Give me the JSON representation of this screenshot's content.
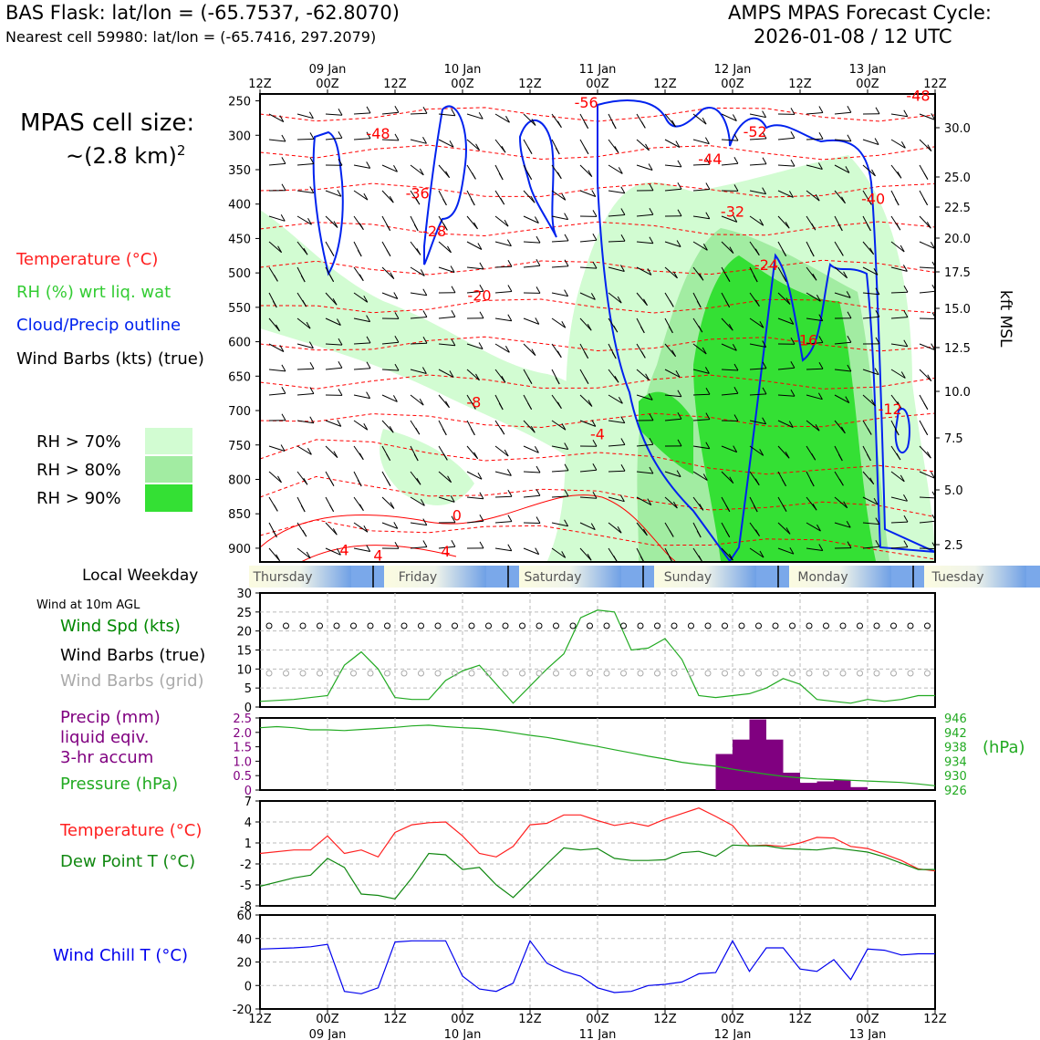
{
  "header": {
    "title": "BAS Flask: lat/lon = (-65.7537, -62.8070)",
    "subtitle": "Nearest cell 59980: lat/lon = (-65.7416, 297.2079)",
    "forecast_label": "AMPS MPAS Forecast Cycle:",
    "forecast_cycle": "2026-01-08 / 12 UTC",
    "cell_size_label": "MPAS cell size:",
    "cell_size_value": "~(2.8 km)",
    "cell_size_exp": "2"
  },
  "legend": {
    "temperature": "Temperature (°C)",
    "rh": "RH (%) wrt liq. wat",
    "cloud": "Cloud/Precip outline",
    "wind": "Wind Barbs (kts) (true)",
    "rh70": "RH > 70%",
    "rh80": "RH > 80%",
    "rh90": "RH > 90%"
  },
  "colors": {
    "rh70": "#d2fcd2",
    "rh80": "#a2eca2",
    "rh90": "#34e034",
    "temp": "#ff0000",
    "cloud": "#0022ee",
    "precip": "#800080",
    "pressure": "#22aa22",
    "dew": "#118811",
    "windchill": "#0000ee"
  },
  "weekday": {
    "label": "Local Weekday",
    "days": [
      "Thursday",
      "Friday",
      "Saturday",
      "Sunday",
      "Monday",
      "Tuesday"
    ]
  },
  "time_axis": {
    "hour_labels": [
      "12Z",
      "00Z",
      "12Z",
      "00Z",
      "12Z",
      "00Z",
      "12Z",
      "00Z",
      "12Z",
      "00Z",
      "12Z"
    ],
    "date_labels": [
      "09 Jan",
      "10 Jan",
      "11 Jan",
      "12 Jan",
      "13 Jan"
    ]
  },
  "chart_data": [
    {
      "type": "heatmap",
      "name": "cross-section",
      "x_range_hours": [
        0,
        120
      ],
      "y_pressure_ticks": [
        250,
        300,
        350,
        400,
        450,
        500,
        550,
        600,
        650,
        700,
        750,
        800,
        850,
        900
      ],
      "y_kft_ticks": [
        "30.0",
        "25.0",
        "22.5",
        "20.0",
        "17.5",
        "15.0",
        "12.5",
        "10.0",
        "7.5",
        "5.0",
        "2.5"
      ],
      "y_kft_label": "kft MSL",
      "temp_labels": [
        {
          "text": "-48",
          "t": 21,
          "p": 305
        },
        {
          "text": "-56",
          "t": 58,
          "p": 260
        },
        {
          "text": "-52",
          "t": 88,
          "p": 302
        },
        {
          "text": "-48",
          "t": 117,
          "p": 250
        },
        {
          "text": "-36",
          "t": 28,
          "p": 392
        },
        {
          "text": "-44",
          "t": 80,
          "p": 342
        },
        {
          "text": "-40",
          "t": 109,
          "p": 400
        },
        {
          "text": "-32",
          "t": 84,
          "p": 418
        },
        {
          "text": "-28",
          "t": 31,
          "p": 447
        },
        {
          "text": "-24",
          "t": 90,
          "p": 496
        },
        {
          "text": "-20",
          "t": 39,
          "p": 540
        },
        {
          "text": "-16",
          "t": 97,
          "p": 605
        },
        {
          "text": "-12",
          "t": 112,
          "p": 705
        },
        {
          "text": "-8",
          "t": 38,
          "p": 695
        },
        {
          "text": "-4",
          "t": 60,
          "p": 742
        },
        {
          "text": "0",
          "t": 35,
          "p": 860
        },
        {
          "text": "4",
          "t": 15,
          "p": 910
        },
        {
          "text": "4",
          "t": 21,
          "p": 918
        },
        {
          "text": "4",
          "t": 33,
          "p": 912
        }
      ]
    },
    {
      "type": "line",
      "name": "surface-wind",
      "title": "Wind at 10m AGL",
      "series_label": "Wind Spd (kts)",
      "barbs_true_label": "Wind Barbs (true)",
      "barbs_grid_label": "Wind Barbs (grid)",
      "ylim": [
        0,
        30
      ],
      "yticks": [
        "0",
        "5",
        "10",
        "15",
        "20",
        "25",
        "30"
      ],
      "x": [
        0,
        6,
        12,
        15,
        18,
        21,
        24,
        27,
        30,
        33,
        36,
        39,
        42,
        45,
        48,
        51,
        54,
        57,
        60,
        63,
        66,
        69,
        72,
        75,
        78,
        81,
        84,
        87,
        90,
        93,
        96,
        99,
        102,
        105,
        108,
        111,
        114,
        117,
        120
      ],
      "values": [
        1.5,
        2,
        3,
        11,
        14.5,
        10,
        2.5,
        2,
        2,
        7,
        9.5,
        11,
        6,
        1,
        5.5,
        10,
        14,
        23.5,
        25.5,
        25,
        15,
        15.5,
        18,
        12.5,
        3,
        2.5,
        3,
        3.5,
        5,
        7.5,
        6,
        2,
        1.5,
        1,
        2,
        1.5,
        2,
        3,
        3
      ]
    },
    {
      "type": "bar",
      "name": "precip-pressure",
      "precip_label": "Precip (mm)",
      "precip_label_2": "liquid eqiv.",
      "precip_label_3": "3-hr accum",
      "pressure_label": "Pressure (hPa)",
      "pressure_unit": "(hPa)",
      "precip_ylim": [
        0,
        2.5
      ],
      "precip_yticks": [
        "0",
        "0.5",
        "1.0",
        "1.5",
        "2.0",
        "2.5"
      ],
      "pressure_ylim": [
        926,
        946
      ],
      "pressure_yticks": [
        "926",
        "930",
        "934",
        "938",
        "942",
        "946"
      ],
      "precip_x": [
        81,
        84,
        87,
        90,
        93,
        96,
        99,
        102,
        105,
        108,
        111,
        114,
        117
      ],
      "precip_values": [
        1.25,
        1.75,
        2.45,
        1.75,
        0.6,
        0.25,
        0.3,
        0.35,
        0.1,
        0,
        0,
        0,
        0
      ],
      "pressure_x": [
        0,
        3,
        6,
        9,
        12,
        15,
        18,
        21,
        24,
        27,
        30,
        33,
        36,
        39,
        42,
        45,
        48,
        51,
        54,
        57,
        60,
        63,
        66,
        69,
        72,
        75,
        78,
        81,
        84,
        87,
        90,
        93,
        96,
        99,
        102,
        105,
        108,
        111,
        114,
        117,
        120
      ],
      "pressure_values": [
        943.3,
        943.6,
        943.3,
        942.7,
        942.7,
        942.5,
        942.8,
        943.1,
        943.4,
        943.8,
        944.0,
        943.6,
        943.3,
        943.1,
        942.6,
        941.9,
        941.2,
        940.6,
        939.8,
        938.9,
        938.1,
        937.2,
        936.3,
        935.4,
        934.6,
        933.7,
        933.1,
        932.6,
        931.8,
        931.1,
        930.4,
        929.8,
        929.4,
        929.1,
        928.9,
        928.7,
        928.5,
        928.3,
        928.1,
        927.7,
        927.2
      ]
    },
    {
      "type": "line",
      "name": "temperature-dewpoint",
      "temp_label": "Temperature (°C)",
      "dew_label": "Dew Point T (°C)",
      "ylim": [
        -8,
        7
      ],
      "yticks": [
        "-8",
        "-5",
        "-2",
        "1",
        "4",
        "7"
      ],
      "x": [
        0,
        6,
        9,
        12,
        15,
        18,
        21,
        24,
        27,
        30,
        33,
        36,
        39,
        42,
        45,
        48,
        51,
        54,
        57,
        60,
        63,
        66,
        69,
        72,
        75,
        78,
        81,
        84,
        87,
        90,
        93,
        96,
        99,
        102,
        105,
        108,
        111,
        114,
        117,
        120
      ],
      "temp_values": [
        -0.5,
        0,
        0,
        2,
        -0.5,
        0,
        -1,
        2.5,
        3.6,
        3.9,
        4.0,
        2.0,
        -0.5,
        -1,
        0.5,
        3.6,
        3.8,
        5.0,
        5.0,
        4.2,
        3.5,
        3.9,
        3.4,
        4.4,
        5.2,
        6.0,
        4.8,
        3.5,
        0.6,
        0.7,
        0.5,
        1.0,
        1.8,
        1.7,
        0.5,
        0.2,
        -0.6,
        -1.5,
        -2.7,
        -3.0
      ],
      "dew_values": [
        -5.2,
        -4.0,
        -3.6,
        -1.2,
        -2.5,
        -6.3,
        -6.5,
        -7.0,
        -4.0,
        -0.5,
        -0.7,
        -2.8,
        -2.5,
        -5.0,
        -6.8,
        -4.4,
        -2.0,
        0.3,
        0,
        0.2,
        -1.2,
        -1.5,
        -1.5,
        -1.4,
        -0.4,
        -0.2,
        -0.9,
        0.7,
        0.6,
        0.6,
        0.2,
        0.1,
        0,
        0.3,
        0,
        -0.3,
        -1.0,
        -1.9,
        -2.8,
        -2.8
      ]
    },
    {
      "type": "line",
      "name": "wind-chill",
      "label": "Wind Chill T (°C)",
      "ylim": [
        -20,
        60
      ],
      "yticks": [
        "-20",
        "0",
        "20",
        "40",
        "60"
      ],
      "x": [
        0,
        6,
        9,
        12,
        15,
        18,
        21,
        24,
        27,
        30,
        33,
        36,
        39,
        42,
        45,
        48,
        51,
        54,
        57,
        60,
        63,
        66,
        69,
        72,
        75,
        78,
        81,
        84,
        87,
        90,
        93,
        96,
        99,
        102,
        105,
        108,
        111,
        114,
        117,
        120
      ],
      "values": [
        31,
        32,
        33,
        35,
        -5,
        -7,
        -2,
        37,
        38,
        38,
        38,
        8,
        -3,
        -5,
        2,
        38,
        19,
        12,
        8,
        -2,
        -6,
        -5,
        0,
        1,
        3,
        10,
        11,
        38,
        12,
        32,
        32,
        14,
        12,
        22,
        5,
        31,
        30,
        26,
        27,
        27
      ]
    }
  ]
}
